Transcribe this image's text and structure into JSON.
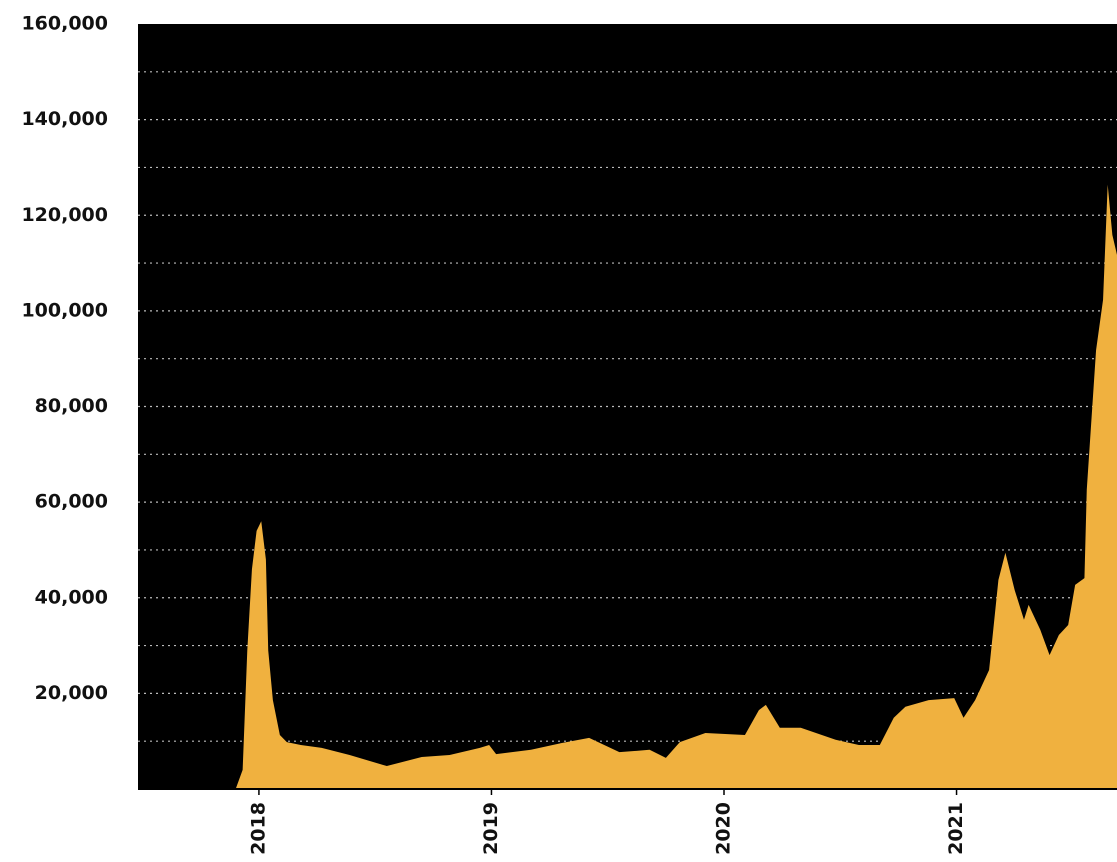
{
  "chart_data": {
    "type": "area",
    "x": [
      2017.48,
      2017.9,
      2017.93,
      2017.95,
      2017.97,
      2017.99,
      2018.01,
      2018.03,
      2018.04,
      2018.06,
      2018.09,
      2018.12,
      2018.18,
      2018.27,
      2018.39,
      2018.55,
      2018.7,
      2018.82,
      2018.95,
      2018.99,
      2019.02,
      2019.17,
      2019.3,
      2019.42,
      2019.55,
      2019.68,
      2019.75,
      2019.81,
      2019.92,
      2020.09,
      2020.15,
      2020.18,
      2020.24,
      2020.33,
      2020.48,
      2020.58,
      2020.67,
      2020.73,
      2020.78,
      2020.88,
      2020.99,
      2021.03,
      2021.08,
      2021.14,
      2021.18,
      2021.21,
      2021.25,
      2021.29,
      2021.31,
      2021.36,
      2021.4,
      2021.44,
      2021.48,
      2021.51,
      2021.55,
      2021.56,
      2021.58,
      2021.6,
      2021.63,
      2021.65,
      2021.67,
      2021.69
    ],
    "values": [
      0,
      0,
      4000,
      29000,
      46000,
      54000,
      56000,
      48000,
      29000,
      18600,
      11300,
      9800,
      9200,
      8600,
      7100,
      4800,
      6700,
      7100,
      8600,
      9200,
      7300,
      8200,
      9600,
      10700,
      7700,
      8200,
      6500,
      9800,
      11700,
      11300,
      16500,
      17600,
      12800,
      12800,
      10300,
      9200,
      9200,
      14900,
      17200,
      18600,
      19000,
      14900,
      18600,
      24900,
      43700,
      49400,
      41600,
      35400,
      38500,
      33300,
      28000,
      32200,
      34300,
      42700,
      44100,
      62600,
      77200,
      91800,
      102300,
      126400,
      115900,
      111700
    ],
    "color": "#f0b13f",
    "background": "#000000",
    "xlim": [
      2017.48,
      2021.69
    ],
    "xticks": [
      2018,
      2019,
      2020,
      2021
    ],
    "ylim": [
      0,
      160000
    ],
    "yticks": [
      {
        "value": 20000,
        "label": "20,000"
      },
      {
        "value": 40000,
        "label": "40,000"
      },
      {
        "value": 60000,
        "label": "60,000"
      },
      {
        "value": 80000,
        "label": "80,000"
      },
      {
        "value": 100000,
        "label": "100,000"
      },
      {
        "value": 120000,
        "label": "120,000"
      },
      {
        "value": 140000,
        "label": "140,000"
      },
      {
        "value": 160000,
        "label": "160,000"
      }
    ],
    "ygrid": [
      10000,
      20000,
      30000,
      40000,
      50000,
      60000,
      70000,
      80000,
      90000,
      100000,
      110000,
      120000,
      130000,
      140000,
      150000
    ],
    "grid": true
  }
}
